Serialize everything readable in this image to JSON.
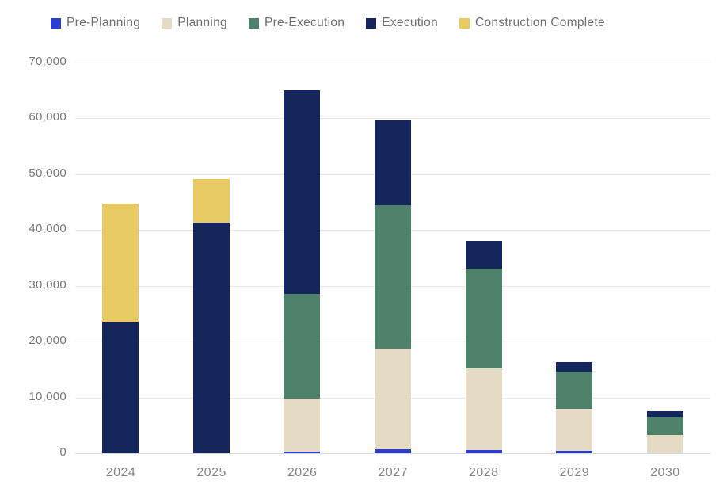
{
  "chart_data": {
    "type": "bar",
    "stacked": true,
    "title": "",
    "xlabel": "",
    "ylabel": "",
    "grid": true,
    "legend_position": "top",
    "ylim": [
      0,
      70000
    ],
    "y_ticks": [
      0,
      10000,
      20000,
      30000,
      40000,
      50000,
      60000,
      70000
    ],
    "y_tick_labels": [
      "0",
      "10,000",
      "20,000",
      "30,000",
      "40,000",
      "50,000",
      "60,000",
      "70,000"
    ],
    "categories": [
      "2024",
      "2025",
      "2026",
      "2027",
      "2028",
      "2029",
      "2030"
    ],
    "series": [
      {
        "name": "Pre-Planning",
        "color": "#2c3ed0",
        "values": [
          0,
          0,
          300,
          700,
          500,
          400,
          0
        ]
      },
      {
        "name": "Planning",
        "color": "#e5dac3",
        "values": [
          0,
          0,
          9500,
          18100,
          14700,
          7500,
          3300
        ]
      },
      {
        "name": "Pre-Execution",
        "color": "#4e8169",
        "values": [
          0,
          0,
          18800,
          25600,
          17900,
          6700,
          3200
        ]
      },
      {
        "name": "Execution",
        "color": "#14265b",
        "values": [
          23600,
          41300,
          36400,
          15300,
          4900,
          1800,
          1000
        ]
      },
      {
        "name": "Construction Complete",
        "color": "#e8c962",
        "values": [
          21100,
          7900,
          0,
          0,
          0,
          0,
          0
        ]
      }
    ],
    "totals": [
      44700,
      49200,
      65000,
      59700,
      38000,
      16400,
      7500
    ]
  },
  "colors": {
    "background": "#ffffff",
    "gridline": "#e8e8ea",
    "baseline": "#d8d8dc",
    "axis_text": "#77777f",
    "legend_text": "#6f6f78"
  }
}
